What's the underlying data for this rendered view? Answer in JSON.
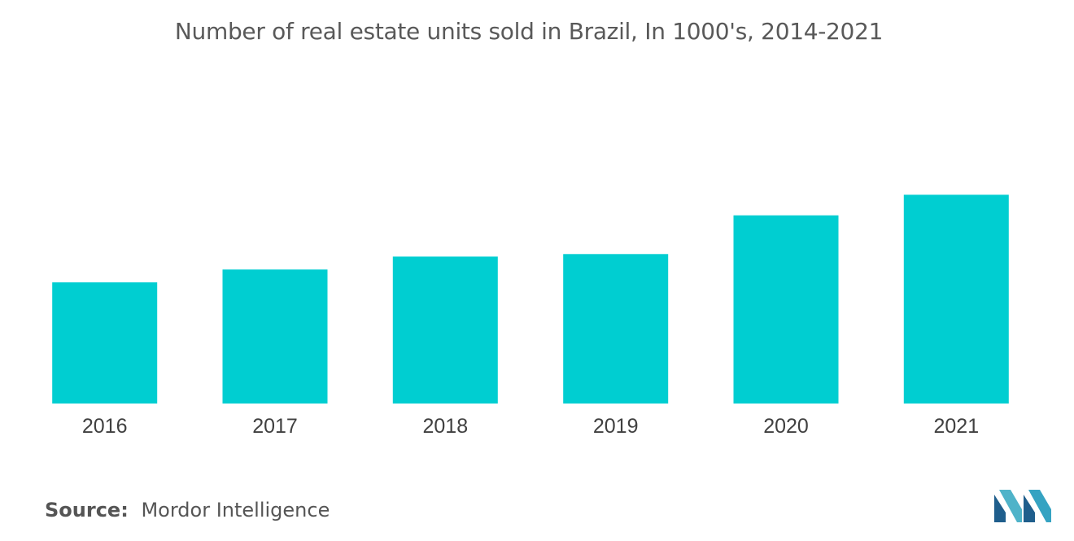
{
  "chart_data": {
    "type": "bar",
    "title": "Number of real estate units sold in Brazil, In 1000's, 2014-2021",
    "xlabel": "",
    "ylabel": "",
    "categories": [
      "2016",
      "2017",
      "2018",
      "2019",
      "2020",
      "2021"
    ],
    "values": [
      94,
      104,
      114,
      116,
      146,
      162
    ],
    "ylim": [
      0,
      250
    ],
    "grid": false,
    "legend": "none",
    "bar_color": "#00CED1"
  },
  "source": {
    "label": "Source:",
    "text": "Mordor Intelligence"
  },
  "logo": {
    "icon": "mordor-intelligence-logo",
    "colors": [
      "#4FB3C9",
      "#1F5E8C",
      "#35A3C2"
    ]
  }
}
